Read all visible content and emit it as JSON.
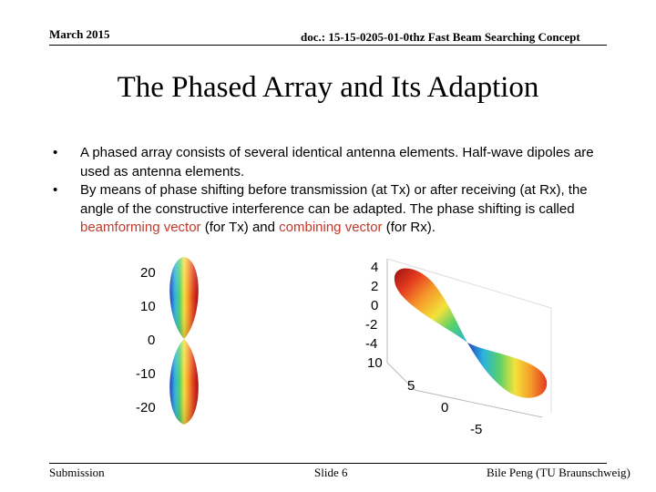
{
  "header": {
    "date": "March 2015",
    "doc": "doc.: 15-15-0205-01-0thz Fast Beam Searching Concept"
  },
  "title": "The Phased Array and Its Adaption",
  "bullets": [
    {
      "marker": "•",
      "text": "A phased array consists of several identical antenna elements. Half-wave dipoles are used as antenna elements."
    },
    {
      "marker": "•",
      "text_before": "By means of phase shifting before transmission (at Tx) or after receiving (at Rx), the angle of the constructive interference can be adapted. The phase shifting is called ",
      "highlight1": "beamforming vector",
      "text_middle": " (for Tx) and ",
      "highlight2": "combining vector",
      "text_after": " (for Rx)."
    }
  ],
  "figure_left": {
    "z_ticks": [
      "20",
      "10",
      "0",
      "-10",
      "-20"
    ]
  },
  "figure_right": {
    "z_ticks": [
      "4",
      "2",
      "0",
      "-2",
      "-4"
    ],
    "x_ticks": [
      "10",
      "5",
      "0",
      "-5"
    ]
  },
  "footer": {
    "left": "Submission",
    "center": "Slide 6",
    "right": "Bile Peng (TU Braunschweig)"
  },
  "colors": {
    "highlight": "#c0392b"
  }
}
